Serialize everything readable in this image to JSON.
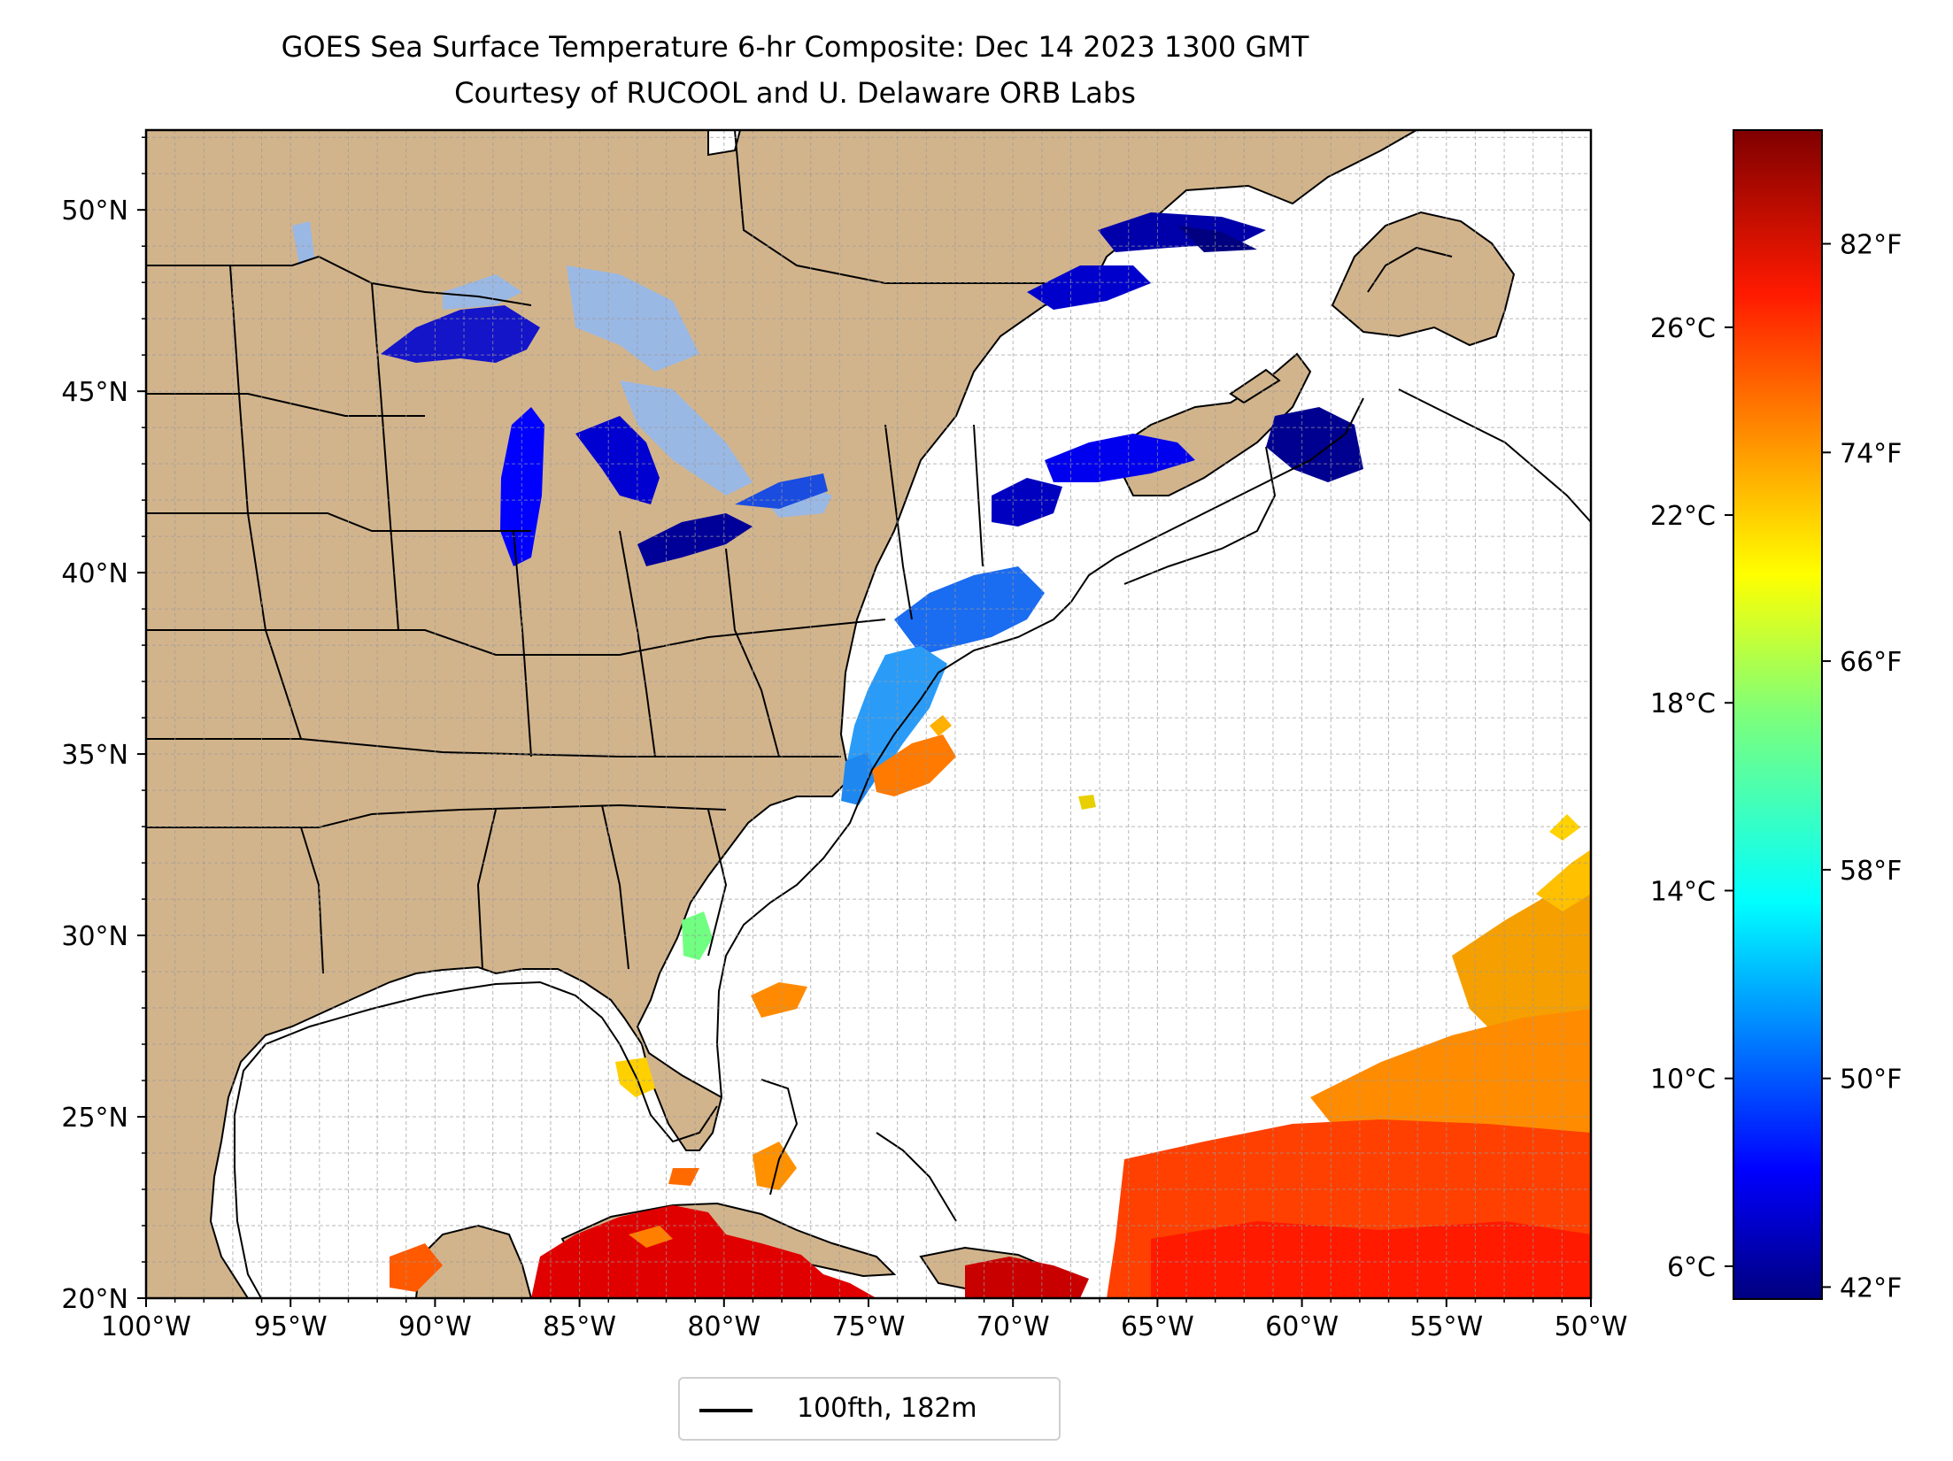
{
  "title": {
    "line1": "GOES Sea Surface Temperature 6-hr Composite: Dec 14 2023 1300 GMT",
    "line2": "Courtesy of RUCOOL and U. Delaware ORB Labs"
  },
  "map": {
    "lon_range": [
      -100,
      -50
    ],
    "lat_range": [
      20,
      52.2
    ],
    "lon_ticks": [
      {
        "value": -100,
        "label": "100°W"
      },
      {
        "value": -95,
        "label": "95°W"
      },
      {
        "value": -90,
        "label": "90°W"
      },
      {
        "value": -85,
        "label": "85°W"
      },
      {
        "value": -80,
        "label": "80°W"
      },
      {
        "value": -75,
        "label": "75°W"
      },
      {
        "value": -70,
        "label": "70°W"
      },
      {
        "value": -65,
        "label": "65°W"
      },
      {
        "value": -60,
        "label": "60°W"
      },
      {
        "value": -55,
        "label": "55°W"
      },
      {
        "value": -50,
        "label": "50°W"
      }
    ],
    "lat_ticks": [
      {
        "value": 20,
        "label": "20°N"
      },
      {
        "value": 25,
        "label": "25°N"
      },
      {
        "value": 30,
        "label": "30°N"
      },
      {
        "value": 35,
        "label": "35°N"
      },
      {
        "value": 40,
        "label": "40°N"
      },
      {
        "value": 45,
        "label": "45°N"
      },
      {
        "value": 50,
        "label": "50°N"
      }
    ],
    "gridlines": "dashed, every 1 degree",
    "land_color": "#d2b48c",
    "ocean_color": "#ffffff",
    "lake_color": "#9ab8e4"
  },
  "colorbar": {
    "colormap": "jet",
    "celsius_ticks": [
      {
        "value": 6,
        "label": "6°C"
      },
      {
        "value": 10,
        "label": "10°C"
      },
      {
        "value": 14,
        "label": "14°C"
      },
      {
        "value": 18,
        "label": "18°C"
      },
      {
        "value": 22,
        "label": "22°C"
      },
      {
        "value": 26,
        "label": "26°C"
      }
    ],
    "fahrenheit_ticks": [
      {
        "value": 42,
        "label": "42°F"
      },
      {
        "value": 50,
        "label": "50°F"
      },
      {
        "value": 58,
        "label": "58°F"
      },
      {
        "value": 66,
        "label": "66°F"
      },
      {
        "value": 74,
        "label": "74°F"
      },
      {
        "value": 82,
        "label": "82°F"
      }
    ],
    "celsius_range": [
      5.3,
      30.2
    ]
  },
  "legend": {
    "entry": "100fth, 182m",
    "line_color": "#000000"
  }
}
